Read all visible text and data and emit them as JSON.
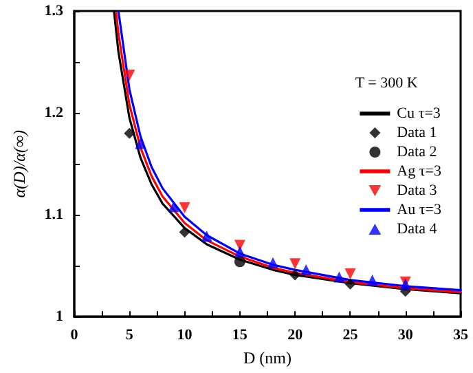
{
  "chart_data": {
    "type": "line",
    "xlabel": "D (nm)",
    "ylabel": "α(D)/α(∞)",
    "annotations": [
      "T = 300 K"
    ],
    "xlim": [
      0,
      35
    ],
    "ylim": [
      1.0,
      1.3
    ],
    "xticks": [
      0,
      {
        "value": 2.5,
        "label": null
      },
      5,
      {
        "value": 7.5,
        "label": null
      },
      10,
      {
        "value": 12.5,
        "label": null
      },
      15,
      {
        "value": 17.5,
        "label": null
      },
      20,
      {
        "value": 22.5,
        "label": null
      },
      25,
      {
        "value": 27.5,
        "label": null
      },
      30,
      {
        "value": 32.5,
        "label": null
      },
      35
    ],
    "yticks": [
      1.0,
      {
        "value": 1.05,
        "label": null
      },
      1.1,
      {
        "value": 1.15,
        "label": null
      },
      1.2,
      {
        "value": 1.25,
        "label": null
      },
      1.3
    ],
    "grid": false,
    "legend": "right",
    "series": [
      {
        "name": "Cu τ=3",
        "color": "#000000",
        "marker": "none",
        "x": [
          3.6,
          4,
          5,
          6,
          7,
          8,
          10,
          12,
          15,
          18,
          20,
          25,
          30,
          35
        ],
        "values": [
          1.3,
          1.26,
          1.195,
          1.156,
          1.13,
          1.111,
          1.087,
          1.071,
          1.056,
          1.046,
          1.041,
          1.033,
          1.027,
          1.023
        ]
      },
      {
        "name": "Data 1",
        "type": "scatter",
        "color": "#000000",
        "marker": "diamond",
        "x": [
          5,
          10,
          20,
          25,
          30
        ],
        "values": [
          1.18,
          1.083,
          1.041,
          1.032,
          1.025
        ]
      },
      {
        "name": "Data 2",
        "type": "scatter",
        "color": "#000000",
        "marker": "circle",
        "x": [
          15
        ],
        "values": [
          1.054
        ]
      },
      {
        "name": "Ag τ=3",
        "color": "#ff0000",
        "marker": "none",
        "x": [
          3.8,
          4,
          5,
          6,
          7,
          8,
          10,
          12,
          15,
          18,
          20,
          25,
          30,
          35
        ],
        "values": [
          1.298,
          1.278,
          1.208,
          1.166,
          1.138,
          1.118,
          1.092,
          1.075,
          1.059,
          1.048,
          1.043,
          1.034,
          1.028,
          1.024
        ]
      },
      {
        "name": "Data 3",
        "type": "scatter",
        "color": "#ff0000",
        "marker": "triangle-down",
        "x": [
          5,
          10,
          15,
          20,
          25,
          30
        ],
        "values": [
          1.237,
          1.107,
          1.07,
          1.052,
          1.042,
          1.034
        ]
      },
      {
        "name": "Au τ=3",
        "color": "#0000ff",
        "marker": "none",
        "x": [
          4,
          5,
          6,
          7,
          8,
          10,
          12,
          15,
          18,
          20,
          25,
          30,
          35
        ],
        "values": [
          1.3,
          1.223,
          1.177,
          1.147,
          1.126,
          1.098,
          1.08,
          1.062,
          1.051,
          1.046,
          1.036,
          1.03,
          1.026
        ]
      },
      {
        "name": "Data 4",
        "type": "scatter",
        "color": "#0000ff",
        "marker": "triangle",
        "x": [
          6,
          9,
          12,
          15,
          18,
          21,
          24,
          27,
          30
        ],
        "values": [
          1.17,
          1.108,
          1.079,
          1.064,
          1.053,
          1.046,
          1.039,
          1.036,
          1.032
        ]
      }
    ]
  }
}
